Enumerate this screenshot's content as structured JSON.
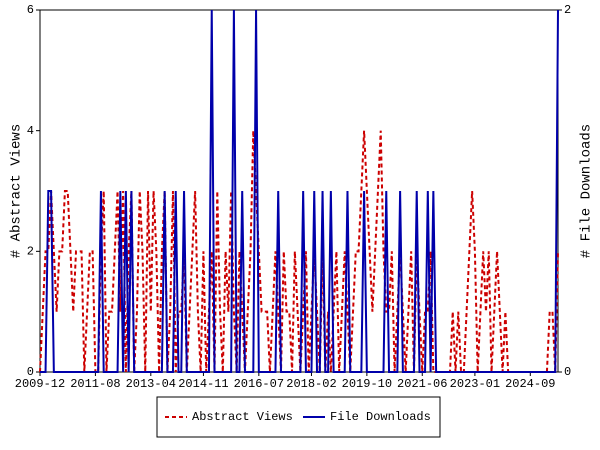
{
  "chart_data": {
    "type": "line",
    "categories": [
      "2009-12",
      null,
      null,
      null,
      null,
      null,
      null,
      null,
      null,
      null,
      null,
      null,
      null,
      null,
      null,
      null,
      null,
      null,
      null,
      null,
      "2011-08",
      null,
      null,
      null,
      null,
      null,
      null,
      null,
      null,
      null,
      null,
      null,
      null,
      null,
      null,
      null,
      null,
      null,
      null,
      null,
      "2013-04",
      null,
      null,
      null,
      null,
      null,
      null,
      null,
      null,
      null,
      null,
      null,
      null,
      null,
      null,
      null,
      null,
      null,
      null,
      "2014-11",
      null,
      null,
      null,
      null,
      null,
      null,
      null,
      null,
      null,
      null,
      null,
      null,
      null,
      null,
      null,
      null,
      null,
      null,
      null,
      "2016-07",
      null,
      null,
      null,
      null,
      null,
      null,
      null,
      null,
      null,
      null,
      null,
      null,
      null,
      null,
      null,
      null,
      null,
      null,
      "2018-02",
      null,
      null,
      null,
      null,
      null,
      null,
      null,
      null,
      null,
      null,
      null,
      null,
      null,
      null,
      null,
      null,
      null,
      null,
      null,
      "2019-10",
      null,
      null,
      null,
      null,
      null,
      null,
      null,
      null,
      null,
      null,
      null,
      null,
      null,
      null,
      null,
      null,
      null,
      null,
      null,
      "2021-06",
      null,
      null,
      null,
      null,
      null,
      null,
      null,
      null,
      null,
      null,
      null,
      null,
      null,
      null,
      null,
      null,
      null,
      null,
      "2023-01",
      null,
      null,
      null,
      null,
      null,
      null,
      null,
      null,
      null,
      null,
      null,
      null,
      null,
      null,
      null,
      null,
      null,
      null,
      null,
      "2024-09",
      null,
      null,
      null,
      null,
      null,
      null,
      null,
      null,
      null,
      null
    ],
    "ylabel": "# Abstract Views",
    "y2label": "# File Downloads",
    "ylim": [
      0,
      6
    ],
    "yticks": [
      0,
      2,
      4,
      6
    ],
    "y2lim": [
      0,
      2
    ],
    "y2ticks": [
      0,
      2
    ],
    "legend": "bottom",
    "series": [
      {
        "name": "Abstract Views",
        "color": "#cc0000",
        "dash": true,
        "values": [
          0,
          1,
          2,
          2,
          3,
          2,
          1,
          2,
          2,
          3,
          3,
          2,
          1,
          2,
          2,
          2,
          0,
          1,
          2,
          2,
          0,
          0,
          2,
          3,
          0,
          1,
          1,
          2,
          3,
          1,
          3,
          0,
          2,
          3,
          0,
          1,
          3,
          2,
          0,
          3,
          1,
          3,
          2,
          0,
          2,
          3,
          0,
          1,
          3,
          0,
          1,
          1,
          2,
          0,
          1,
          2,
          3,
          1,
          0,
          2,
          0,
          1,
          2,
          0,
          3,
          1,
          0,
          2,
          1,
          3,
          1,
          0,
          2,
          1,
          0,
          1,
          2,
          4,
          3,
          2,
          1,
          1,
          1,
          0,
          1,
          2,
          1,
          0,
          2,
          1,
          1,
          0,
          2,
          1,
          0,
          1,
          2,
          0,
          1,
          2,
          1,
          0,
          2,
          0,
          1,
          0,
          1,
          2,
          0,
          1,
          2,
          1,
          0,
          1,
          2,
          2,
          3,
          4,
          3,
          2,
          1,
          2,
          3,
          4,
          2,
          1,
          1,
          2,
          0,
          1,
          2,
          1,
          0,
          1,
          2,
          0,
          2,
          1,
          0,
          1,
          1,
          2,
          0,
          0,
          0,
          0,
          0,
          0,
          0,
          1,
          0,
          1,
          0,
          0,
          1,
          2,
          3,
          2,
          0,
          1,
          2,
          1,
          2,
          0,
          1,
          2,
          1,
          0,
          1,
          0,
          0,
          0,
          0,
          0,
          0,
          0,
          0,
          0,
          0,
          0,
          0,
          0,
          0,
          0,
          1,
          1,
          0,
          2
        ]
      },
      {
        "name": "File Downloads",
        "color": "#0000aa",
        "axis": "y2",
        "values": [
          0,
          0,
          0,
          1,
          1,
          0,
          0,
          0,
          0,
          0,
          0,
          0,
          0,
          0,
          0,
          0,
          0,
          0,
          0,
          0,
          0,
          0,
          1,
          0,
          0,
          0,
          0,
          0,
          0,
          1,
          0,
          1,
          0,
          1,
          0,
          0,
          0,
          0,
          0,
          0,
          0,
          0,
          0,
          0,
          0,
          1,
          0,
          0,
          0,
          1,
          0,
          0,
          1,
          0,
          0,
          0,
          0,
          0,
          0,
          0,
          0,
          0,
          2,
          0,
          0,
          0,
          0,
          0,
          0,
          0,
          2,
          0,
          0,
          1,
          0,
          0,
          0,
          0,
          2,
          0,
          0,
          0,
          0,
          0,
          0,
          0,
          1,
          0,
          0,
          0,
          0,
          0,
          0,
          0,
          0,
          1,
          0,
          0,
          0,
          1,
          0,
          0,
          1,
          0,
          0,
          1,
          0,
          0,
          0,
          0,
          0,
          1,
          0,
          0,
          0,
          0,
          0,
          1,
          0,
          0,
          0,
          0,
          0,
          0,
          0,
          1,
          0,
          0,
          0,
          0,
          1,
          0,
          0,
          0,
          0,
          0,
          1,
          0,
          0,
          0,
          1,
          0,
          1,
          0,
          0,
          0,
          0,
          0,
          0,
          0,
          0,
          0,
          0,
          0,
          0,
          0,
          0,
          0,
          0,
          0,
          0,
          0,
          0,
          0,
          0,
          0,
          0,
          0,
          0,
          0,
          0,
          0,
          0,
          0,
          0,
          0,
          0,
          0,
          0,
          0,
          0,
          0,
          0,
          0,
          0,
          0,
          0,
          2
        ]
      }
    ]
  }
}
